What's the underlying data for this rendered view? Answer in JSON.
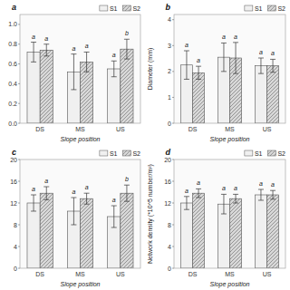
{
  "chart_data": [
    {
      "type": "bar",
      "title": "a",
      "xlabel": "Slope position",
      "categories": [
        "DS",
        "MS",
        "US"
      ],
      "series": [
        {
          "name": "S1",
          "color": "#f0f0f0",
          "values": [
            0.72,
            0.52,
            0.55
          ],
          "errors": [
            0.1,
            0.18,
            0.08
          ],
          "annotations": [
            "a",
            "a",
            "a"
          ]
        },
        {
          "name": "S2",
          "color": "#d8d8d8",
          "values": [
            0.74,
            0.62,
            0.75
          ],
          "errors": [
            0.06,
            0.1,
            0.1
          ],
          "annotations": [
            "a",
            "a",
            "b"
          ]
        }
      ],
      "ylim": [
        0,
        1.1
      ],
      "yticks": [
        {
          "value": 0.0,
          "label": "0.0"
        },
        0.2,
        0.4,
        0.6,
        0.8,
        {
          "value": 1.0,
          "label": "1.0"
        }
      ],
      "grid": false,
      "legend": "upper right"
    },
    {
      "type": "bar",
      "title": "b",
      "xlabel": "Slope position",
      "ylabel": "Diameter (mm)",
      "categories": [
        "DS",
        "MS",
        "US"
      ],
      "series": [
        {
          "name": "S1",
          "color": "#f0f0f0",
          "values": [
            2.25,
            2.55,
            2.22
          ],
          "errors": [
            0.55,
            0.55,
            0.3
          ],
          "annotations": [
            "a",
            "a",
            "a"
          ]
        },
        {
          "name": "S2",
          "color": "#d8d8d8",
          "values": [
            1.95,
            2.52,
            2.22
          ],
          "errors": [
            0.25,
            0.6,
            0.25
          ],
          "annotations": [
            "a",
            "a",
            "a"
          ]
        }
      ],
      "ylim": [
        0,
        4.2
      ],
      "yticks": [
        0,
        1,
        2,
        3,
        4
      ],
      "grid": false,
      "legend": "upper right"
    },
    {
      "type": "bar",
      "title": "c",
      "xlabel": "Slope position",
      "categories": [
        "DS",
        "MS",
        "US"
      ],
      "series": [
        {
          "name": "S1",
          "color": "#f0f0f0",
          "values": [
            12.0,
            10.5,
            9.5
          ],
          "errors": [
            1.5,
            2.5,
            2.0
          ],
          "annotations": [
            "a",
            "a",
            "a"
          ]
        },
        {
          "name": "S2",
          "color": "#d8d8d8",
          "values": [
            13.8,
            12.8,
            13.8
          ],
          "errors": [
            1.2,
            1.0,
            1.5
          ],
          "annotations": [
            "a",
            "a",
            "b"
          ]
        }
      ],
      "ylim": [
        0,
        20
      ],
      "yticks": [
        0,
        4,
        8,
        12,
        16,
        20
      ],
      "grid": false,
      "legend": "upper right"
    },
    {
      "type": "bar",
      "title": "d",
      "xlabel": "Slope position",
      "ylabel": "Network density (*10^5 number/m²)",
      "categories": [
        "DS",
        "MS",
        "US"
      ],
      "series": [
        {
          "name": "S1",
          "color": "#f0f0f0",
          "values": [
            12.0,
            11.8,
            13.5
          ],
          "errors": [
            1.2,
            1.8,
            1.0
          ],
          "annotations": [
            "a",
            "a",
            "a"
          ]
        },
        {
          "name": "S2",
          "color": "#d8d8d8",
          "values": [
            13.8,
            12.8,
            13.5
          ],
          "errors": [
            0.8,
            0.8,
            0.8
          ],
          "annotations": [
            "a",
            "a",
            "a"
          ]
        }
      ],
      "ylim": [
        0,
        20
      ],
      "yticks": [
        0,
        4,
        8,
        12,
        16,
        20
      ],
      "grid": false,
      "legend": "upper right"
    }
  ]
}
